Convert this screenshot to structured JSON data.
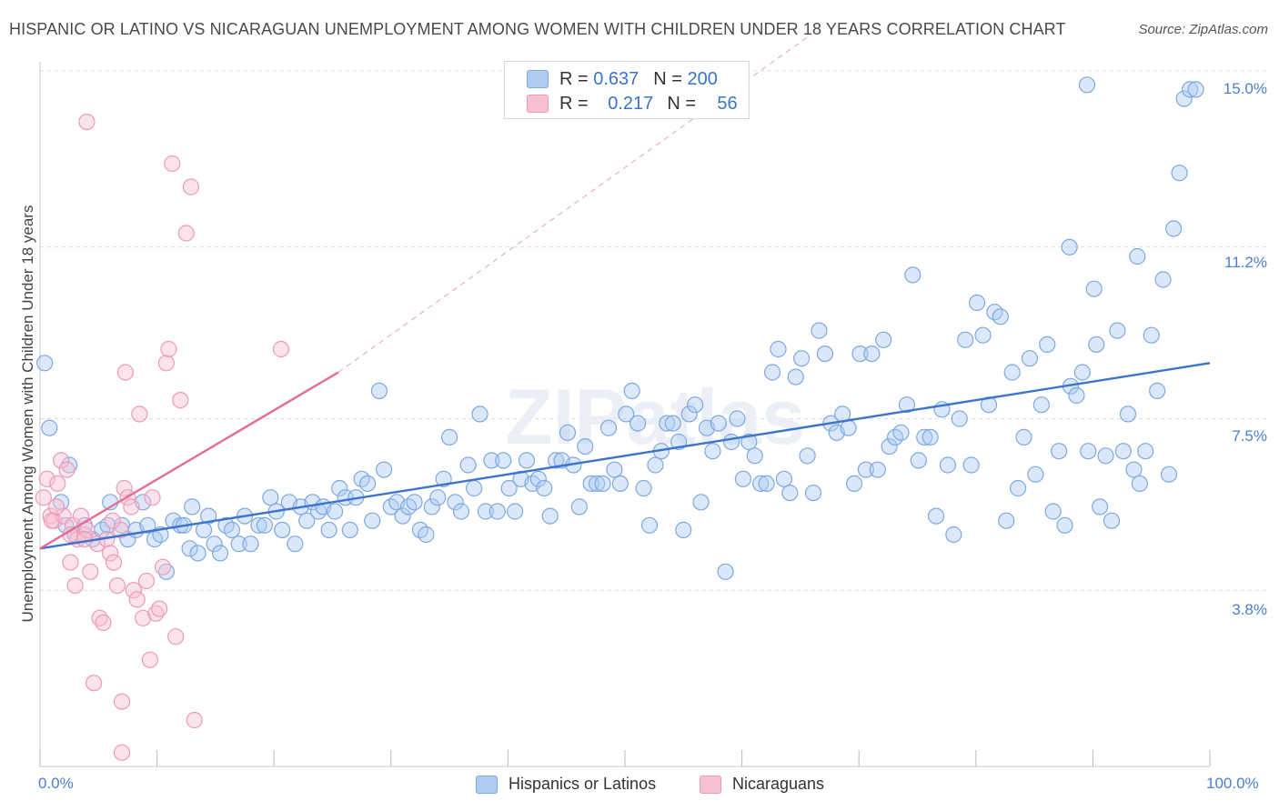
{
  "header": {
    "title": "HISPANIC OR LATINO VS NICARAGUAN UNEMPLOYMENT AMONG WOMEN WITH CHILDREN UNDER 18 YEARS CORRELATION CHART",
    "source": "Source: ZipAtlas.com"
  },
  "watermark": "ZIPatlas",
  "legend": {
    "r_label": "R =",
    "n_label": "N =",
    "rows": [
      {
        "r": "0.637",
        "n": "200",
        "color": "#aecbf1",
        "border": "#7fa8e0"
      },
      {
        "r": "0.217",
        "n": "56",
        "color": "#f7c0d2",
        "border": "#ec9ab6"
      }
    ]
  },
  "chart_data": {
    "type": "scatter",
    "title": "HISPANIC OR LATINO VS NICARAGUAN UNEMPLOYMENT AMONG WOMEN WITH CHILDREN UNDER 18 YEARS CORRELATION CHART",
    "xlabel": "",
    "ylabel": "Unemployment Among Women with Children Under 18 years",
    "xlim": [
      0,
      100
    ],
    "ylim": [
      0,
      15.0
    ],
    "x_tick_labels": [
      "0.0%",
      "100.0%"
    ],
    "y_ticks": [
      3.8,
      7.5,
      11.2,
      15.0
    ],
    "y_tick_labels": [
      "3.8%",
      "7.5%",
      "11.2%",
      "15.0%"
    ],
    "grid": true,
    "legend_position": "top-center",
    "series": [
      {
        "name": "Hispanics or Latinos",
        "color": "#7fa8e0",
        "fill": "#aecbf1",
        "trend": {
          "x": [
            0,
            100
          ],
          "y": [
            4.7,
            8.7
          ],
          "color": "#3b74cc"
        },
        "points": [
          [
            0.4,
            8.7
          ],
          [
            0.8,
            7.3
          ],
          [
            1.8,
            5.7
          ],
          [
            2.2,
            5.2
          ],
          [
            3.0,
            5.0
          ],
          [
            2.5,
            6.5
          ],
          [
            3.8,
            5.2
          ],
          [
            4.5,
            4.9
          ],
          [
            5.3,
            5.1
          ],
          [
            5.8,
            5.2
          ],
          [
            6.0,
            5.7
          ],
          [
            7.0,
            5.2
          ],
          [
            7.5,
            4.9
          ],
          [
            8.2,
            5.1
          ],
          [
            8.8,
            5.7
          ],
          [
            9.2,
            5.2
          ],
          [
            9.8,
            4.9
          ],
          [
            10.3,
            5.0
          ],
          [
            10.8,
            4.2
          ],
          [
            11.4,
            5.3
          ],
          [
            12.0,
            5.2
          ],
          [
            12.3,
            5.2
          ],
          [
            12.8,
            4.7
          ],
          [
            13.0,
            5.6
          ],
          [
            13.5,
            4.6
          ],
          [
            14.0,
            5.1
          ],
          [
            14.4,
            5.4
          ],
          [
            14.9,
            4.8
          ],
          [
            15.4,
            4.6
          ],
          [
            15.9,
            5.2
          ],
          [
            16.4,
            5.1
          ],
          [
            17.0,
            4.8
          ],
          [
            17.5,
            5.4
          ],
          [
            18.0,
            4.8
          ],
          [
            18.7,
            5.2
          ],
          [
            19.2,
            5.2
          ],
          [
            19.7,
            5.8
          ],
          [
            20.2,
            5.5
          ],
          [
            20.7,
            5.1
          ],
          [
            21.3,
            5.7
          ],
          [
            21.8,
            4.8
          ],
          [
            22.3,
            5.6
          ],
          [
            22.8,
            5.3
          ],
          [
            23.3,
            5.7
          ],
          [
            23.8,
            5.5
          ],
          [
            24.2,
            5.6
          ],
          [
            24.7,
            5.1
          ],
          [
            25.2,
            5.5
          ],
          [
            25.6,
            6.0
          ],
          [
            26.1,
            5.8
          ],
          [
            26.5,
            5.1
          ],
          [
            27.0,
            5.8
          ],
          [
            27.5,
            6.2
          ],
          [
            28.0,
            6.1
          ],
          [
            28.4,
            5.3
          ],
          [
            29.0,
            8.1
          ],
          [
            29.4,
            6.4
          ],
          [
            30.0,
            5.6
          ],
          [
            30.5,
            5.7
          ],
          [
            31.0,
            5.4
          ],
          [
            31.5,
            5.6
          ],
          [
            32.0,
            5.7
          ],
          [
            32.5,
            5.1
          ],
          [
            33.0,
            5.0
          ],
          [
            33.5,
            5.6
          ],
          [
            34.0,
            5.8
          ],
          [
            34.5,
            6.2
          ],
          [
            35.0,
            7.1
          ],
          [
            35.5,
            5.7
          ],
          [
            36.0,
            5.5
          ],
          [
            36.6,
            6.5
          ],
          [
            37.1,
            6.0
          ],
          [
            37.6,
            7.6
          ],
          [
            38.1,
            5.5
          ],
          [
            38.6,
            6.6
          ],
          [
            39.1,
            5.5
          ],
          [
            39.6,
            6.6
          ],
          [
            40.1,
            6.0
          ],
          [
            40.6,
            5.5
          ],
          [
            41.1,
            6.2
          ],
          [
            41.6,
            6.6
          ],
          [
            42.1,
            6.1
          ],
          [
            42.6,
            6.2
          ],
          [
            43.1,
            6.0
          ],
          [
            43.6,
            5.4
          ],
          [
            44.1,
            6.6
          ],
          [
            44.6,
            6.6
          ],
          [
            45.1,
            7.2
          ],
          [
            45.6,
            6.5
          ],
          [
            46.1,
            5.6
          ],
          [
            46.6,
            6.9
          ],
          [
            47.1,
            6.1
          ],
          [
            47.6,
            6.1
          ],
          [
            48.1,
            6.1
          ],
          [
            48.6,
            7.3
          ],
          [
            49.1,
            6.4
          ],
          [
            49.6,
            6.1
          ],
          [
            50.1,
            7.6
          ],
          [
            50.6,
            8.1
          ],
          [
            51.1,
            7.4
          ],
          [
            51.6,
            6.0
          ],
          [
            52.1,
            5.2
          ],
          [
            52.6,
            6.5
          ],
          [
            53.1,
            6.8
          ],
          [
            53.6,
            7.4
          ],
          [
            54.1,
            7.4
          ],
          [
            54.6,
            7.0
          ],
          [
            55.0,
            5.1
          ],
          [
            55.5,
            7.6
          ],
          [
            56.0,
            7.8
          ],
          [
            56.5,
            5.7
          ],
          [
            57.0,
            7.3
          ],
          [
            57.5,
            6.8
          ],
          [
            58.0,
            7.4
          ],
          [
            58.6,
            4.2
          ],
          [
            59.1,
            7.0
          ],
          [
            59.6,
            7.5
          ],
          [
            60.1,
            6.2
          ],
          [
            60.6,
            7.0
          ],
          [
            61.1,
            6.7
          ],
          [
            61.6,
            6.1
          ],
          [
            62.1,
            6.1
          ],
          [
            62.6,
            8.5
          ],
          [
            63.1,
            9.0
          ],
          [
            63.6,
            6.2
          ],
          [
            64.1,
            5.9
          ],
          [
            64.6,
            8.4
          ],
          [
            65.1,
            8.8
          ],
          [
            65.6,
            6.7
          ],
          [
            66.1,
            5.9
          ],
          [
            66.6,
            9.4
          ],
          [
            67.1,
            8.9
          ],
          [
            67.6,
            7.4
          ],
          [
            68.1,
            7.2
          ],
          [
            68.6,
            7.6
          ],
          [
            69.1,
            7.3
          ],
          [
            69.6,
            6.1
          ],
          [
            70.1,
            8.9
          ],
          [
            70.6,
            6.4
          ],
          [
            71.1,
            8.9
          ],
          [
            71.6,
            6.4
          ],
          [
            72.1,
            9.2
          ],
          [
            72.6,
            6.9
          ],
          [
            73.1,
            7.1
          ],
          [
            73.6,
            7.2
          ],
          [
            74.1,
            7.8
          ],
          [
            74.6,
            10.6
          ],
          [
            75.1,
            6.6
          ],
          [
            75.6,
            7.1
          ],
          [
            76.1,
            7.1
          ],
          [
            76.6,
            5.4
          ],
          [
            77.1,
            7.7
          ],
          [
            77.6,
            6.5
          ],
          [
            78.1,
            5.0
          ],
          [
            78.6,
            7.5
          ],
          [
            79.1,
            9.2
          ],
          [
            79.6,
            6.5
          ],
          [
            80.1,
            10.0
          ],
          [
            80.6,
            9.3
          ],
          [
            81.1,
            7.8
          ],
          [
            81.6,
            9.8
          ],
          [
            82.1,
            9.7
          ],
          [
            82.6,
            5.3
          ],
          [
            83.1,
            8.5
          ],
          [
            83.6,
            6.0
          ],
          [
            84.1,
            7.1
          ],
          [
            84.6,
            8.8
          ],
          [
            85.1,
            6.3
          ],
          [
            85.6,
            7.8
          ],
          [
            86.1,
            9.1
          ],
          [
            86.6,
            5.5
          ],
          [
            87.1,
            6.8
          ],
          [
            87.6,
            5.2
          ],
          [
            88.1,
            8.2
          ],
          [
            88.6,
            8.0
          ],
          [
            89.1,
            8.5
          ],
          [
            89.6,
            6.8
          ],
          [
            90.1,
            10.3
          ],
          [
            90.6,
            5.6
          ],
          [
            91.1,
            6.7
          ],
          [
            91.6,
            5.3
          ],
          [
            92.1,
            9.4
          ],
          [
            92.6,
            6.8
          ],
          [
            93.0,
            7.6
          ],
          [
            93.5,
            6.4
          ],
          [
            94.0,
            6.1
          ],
          [
            94.5,
            6.8
          ],
          [
            95.0,
            9.3
          ],
          [
            95.5,
            8.1
          ],
          [
            96.0,
            10.5
          ],
          [
            96.5,
            6.3
          ],
          [
            96.9,
            11.6
          ],
          [
            97.4,
            12.8
          ],
          [
            97.8,
            14.4
          ],
          [
            98.3,
            14.6
          ],
          [
            98.8,
            14.6
          ],
          [
            93.8,
            11.0
          ],
          [
            88.0,
            11.2
          ],
          [
            89.5,
            14.7
          ],
          [
            90.3,
            9.1
          ]
        ]
      },
      {
        "name": "Nicaraguans",
        "color": "#ec9ab6",
        "fill": "#f7c0d2",
        "trend": {
          "x": [
            0,
            25.5
          ],
          "y": [
            4.7,
            8.5
          ],
          "color": "#e36c96",
          "extended_to": [
            66,
            15.8
          ]
        },
        "points": [
          [
            0.3,
            5.8
          ],
          [
            0.6,
            6.2
          ],
          [
            0.9,
            5.4
          ],
          [
            1.2,
            5.3
          ],
          [
            1.5,
            6.1
          ],
          [
            1.8,
            6.6
          ],
          [
            2.0,
            5.4
          ],
          [
            2.3,
            6.4
          ],
          [
            2.6,
            4.4
          ],
          [
            2.8,
            5.2
          ],
          [
            3.0,
            3.9
          ],
          [
            3.2,
            4.9
          ],
          [
            3.5,
            5.4
          ],
          [
            3.8,
            5.0
          ],
          [
            4.0,
            5.1
          ],
          [
            4.3,
            4.2
          ],
          [
            4.6,
            1.8
          ],
          [
            4.9,
            4.8
          ],
          [
            5.1,
            3.2
          ],
          [
            5.4,
            3.1
          ],
          [
            5.7,
            4.9
          ],
          [
            6.0,
            4.6
          ],
          [
            6.3,
            4.4
          ],
          [
            6.6,
            3.9
          ],
          [
            6.9,
            5.1
          ],
          [
            7.2,
            6.0
          ],
          [
            7.5,
            5.8
          ],
          [
            7.8,
            5.6
          ],
          [
            8.0,
            3.8
          ],
          [
            8.3,
            3.6
          ],
          [
            8.5,
            7.6
          ],
          [
            8.8,
            3.2
          ],
          [
            9.1,
            4.0
          ],
          [
            9.4,
            2.3
          ],
          [
            9.6,
            5.8
          ],
          [
            9.9,
            3.3
          ],
          [
            10.2,
            3.4
          ],
          [
            10.5,
            4.3
          ],
          [
            10.8,
            8.7
          ],
          [
            11.0,
            9.0
          ],
          [
            11.3,
            13.0
          ],
          [
            11.6,
            2.8
          ],
          [
            12.0,
            7.9
          ],
          [
            12.5,
            11.5
          ],
          [
            12.9,
            12.5
          ],
          [
            13.2,
            1.0
          ],
          [
            4.0,
            13.9
          ],
          [
            7.0,
            0.3
          ],
          [
            7.3,
            8.5
          ],
          [
            7.0,
            1.4
          ],
          [
            20.6,
            9.0
          ],
          [
            1.0,
            5.3
          ],
          [
            1.4,
            5.6
          ],
          [
            2.6,
            5.0
          ],
          [
            3.8,
            4.9
          ],
          [
            6.2,
            5.3
          ]
        ]
      }
    ]
  },
  "bottom_legend": [
    {
      "label": "Hispanics or Latinos",
      "color": "#aecbf1",
      "border": "#7fa8e0"
    },
    {
      "label": "Nicaraguans",
      "color": "#f7c0d2",
      "border": "#ec9ab6"
    }
  ]
}
